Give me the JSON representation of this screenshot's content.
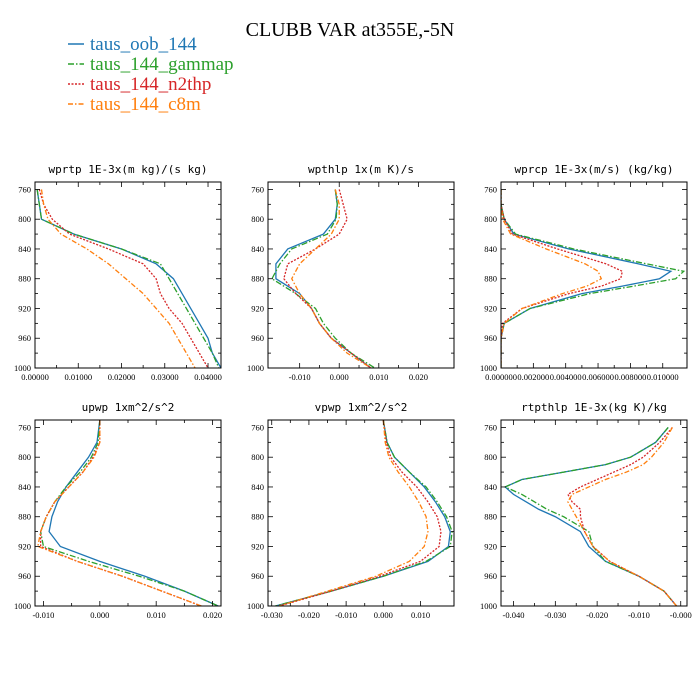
{
  "figure": {
    "title": "CLUBB VAR at355E,-5N"
  },
  "legend": [
    {
      "name": "taus_oob_144",
      "color": "#1f77b4",
      "dash": ""
    },
    {
      "name": "taus_144_gammap",
      "color": "#2ca02c",
      "dash": "6,2,1.5,2"
    },
    {
      "name": "taus_144_n2thp",
      "color": "#d62728",
      "dash": "2,1.5"
    },
    {
      "name": "taus_144_c8m",
      "color": "#ff7f0e",
      "dash": "5,2,1.5,2"
    }
  ],
  "chart_data": [
    {
      "type": "line",
      "title": "wprtp  1E-3x(m kg)/(s kg)",
      "xlim": [
        0.0,
        0.043
      ],
      "ylim": [
        1000,
        750
      ],
      "xticks": [
        0.0,
        0.01,
        0.02,
        0.03,
        0.04
      ],
      "xtick_labels": [
        "0.00000",
        "0.01000",
        "0.02000",
        "0.03000",
        "0.04000"
      ],
      "yticks": [
        760,
        800,
        840,
        880,
        920,
        960,
        1000
      ],
      "ytick_labels": [
        "760",
        "800",
        "840",
        "880",
        "920",
        "960",
        "1000"
      ],
      "y": [
        760,
        780,
        800,
        820,
        840,
        860,
        880,
        900,
        920,
        940,
        960,
        980,
        1000
      ],
      "series": [
        {
          "name": "taus_oob_144",
          "values": [
            0.0005,
            0.001,
            0.0015,
            0.009,
            0.02,
            0.028,
            0.032,
            0.034,
            0.036,
            0.038,
            0.04,
            0.041,
            0.043
          ]
        },
        {
          "name": "taus_144_gammap",
          "values": [
            0.0005,
            0.001,
            0.0015,
            0.009,
            0.02,
            0.029,
            0.031,
            0.033,
            0.035,
            0.037,
            0.039,
            0.041,
            0.0425
          ]
        },
        {
          "name": "taus_144_n2thp",
          "values": [
            0.001,
            0.002,
            0.004,
            0.008,
            0.017,
            0.025,
            0.028,
            0.029,
            0.031,
            0.034,
            0.036,
            0.038,
            0.04
          ]
        },
        {
          "name": "taus_144_c8m",
          "values": [
            0.0015,
            0.002,
            0.003,
            0.006,
            0.012,
            0.017,
            0.021,
            0.025,
            0.028,
            0.031,
            0.033,
            0.035,
            0.037
          ]
        }
      ]
    },
    {
      "type": "line",
      "title": "wpthlp  1x(m K)/s",
      "xlim": [
        -0.018,
        0.029
      ],
      "ylim": [
        1000,
        750
      ],
      "xticks": [
        -0.01,
        0.0,
        0.01,
        0.02
      ],
      "xtick_labels": [
        "-0.010",
        "0.000",
        "0.010",
        "0.020"
      ],
      "yticks": [
        760,
        800,
        840,
        880,
        920,
        960,
        1000
      ],
      "ytick_labels": [
        "760",
        "800",
        "840",
        "880",
        "920",
        "960",
        "1000"
      ],
      "y": [
        760,
        780,
        800,
        820,
        840,
        860,
        880,
        900,
        920,
        940,
        960,
        980,
        1000
      ],
      "series": [
        {
          "name": "taus_oob_144",
          "values": [
            -0.001,
            -0.0005,
            -0.001,
            -0.004,
            -0.013,
            -0.016,
            -0.016,
            -0.01,
            -0.007,
            -0.005,
            -0.002,
            0.003,
            0.008
          ]
        },
        {
          "name": "taus_144_gammap",
          "values": [
            -0.001,
            -0.0005,
            -0.0008,
            -0.003,
            -0.012,
            -0.015,
            -0.017,
            -0.011,
            -0.006,
            -0.004,
            -0.001,
            0.003,
            0.009
          ]
        },
        {
          "name": "taus_144_n2thp",
          "values": [
            0.0,
            0.001,
            0.002,
            0.0,
            -0.006,
            -0.013,
            -0.014,
            -0.011,
            -0.007,
            -0.005,
            -0.002,
            0.003,
            0.008
          ]
        },
        {
          "name": "taus_144_c8m",
          "values": [
            -0.001,
            0.0,
            0.0,
            -0.002,
            -0.006,
            -0.01,
            -0.012,
            -0.01,
            -0.007,
            -0.005,
            -0.002,
            0.002,
            0.008
          ]
        }
      ]
    },
    {
      "type": "line",
      "title": "wprcp  1E-3x(m/s) (kg/kg)",
      "xlim": [
        0.0,
        0.0115
      ],
      "ylim": [
        1000,
        750
      ],
      "xticks": [
        0.0,
        0.002,
        0.004,
        0.006,
        0.008,
        0.01
      ],
      "xtick_labels": [
        "0.000000",
        "0.002000",
        "0.004000",
        "0.006000",
        "0.008000",
        "0.010000"
      ],
      "yticks": [
        760,
        800,
        840,
        880,
        920,
        960,
        1000
      ],
      "ytick_labels": [
        "760",
        "800",
        "840",
        "880",
        "920",
        "960",
        "1000"
      ],
      "y": [
        760,
        780,
        800,
        820,
        840,
        860,
        870,
        880,
        890,
        900,
        920,
        940,
        960,
        980,
        1000
      ],
      "series": [
        {
          "name": "taus_oob_144",
          "values": [
            0.0,
            0.0,
            0.0002,
            0.0008,
            0.0042,
            0.0085,
            0.0105,
            0.0098,
            0.0075,
            0.005,
            0.0018,
            0.0002,
            0.0,
            0.0,
            0.0
          ]
        },
        {
          "name": "taus_144_gammap",
          "values": [
            0.0,
            0.0,
            0.0002,
            0.0009,
            0.0045,
            0.009,
            0.0113,
            0.0108,
            0.0082,
            0.0055,
            0.0018,
            0.0002,
            0.0,
            0.0,
            0.0
          ]
        },
        {
          "name": "taus_144_n2thp",
          "values": [
            0.0,
            0.0,
            0.0002,
            0.0007,
            0.0035,
            0.0065,
            0.0075,
            0.0074,
            0.0062,
            0.0042,
            0.0013,
            0.0001,
            0.0,
            0.0,
            0.0
          ]
        },
        {
          "name": "taus_144_c8m",
          "values": [
            0.0,
            0.0,
            0.0001,
            0.0006,
            0.0028,
            0.0052,
            0.006,
            0.0062,
            0.0053,
            0.0038,
            0.0013,
            0.0002,
            0.0,
            0.0,
            0.0
          ]
        }
      ]
    },
    {
      "type": "line",
      "title": "upwp  1xm^2/s^2",
      "xlim": [
        -0.0115,
        0.0215
      ],
      "ylim": [
        1000,
        750
      ],
      "xticks": [
        -0.01,
        0.0,
        0.01,
        0.02
      ],
      "xtick_labels": [
        "-0.010",
        "0.000",
        "0.010",
        "0.020"
      ],
      "yticks": [
        760,
        800,
        840,
        880,
        920,
        960,
        1000
      ],
      "ytick_labels": [
        "760",
        "800",
        "840",
        "880",
        "920",
        "960",
        "1000"
      ],
      "y": [
        750,
        780,
        800,
        820,
        840,
        860,
        880,
        900,
        920,
        940,
        960,
        980,
        1000
      ],
      "series": [
        {
          "name": "taus_oob_144",
          "values": [
            0.0,
            -0.0005,
            -0.002,
            -0.004,
            -0.006,
            -0.0075,
            -0.0085,
            -0.009,
            -0.007,
            0.0,
            0.008,
            0.015,
            0.021
          ]
        },
        {
          "name": "taus_144_gammap",
          "values": [
            0.0,
            -0.0003,
            -0.0015,
            -0.0035,
            -0.006,
            -0.008,
            -0.0095,
            -0.0105,
            -0.01,
            -0.002,
            0.007,
            0.015,
            0.021
          ]
        },
        {
          "name": "taus_144_n2thp",
          "values": [
            0.0,
            0.0,
            -0.0012,
            -0.003,
            -0.0055,
            -0.008,
            -0.0095,
            -0.0105,
            -0.0105,
            -0.004,
            0.004,
            0.011,
            0.018
          ]
        },
        {
          "name": "taus_144_c8m",
          "values": [
            0.0,
            0.0,
            -0.001,
            -0.003,
            -0.0055,
            -0.008,
            -0.0095,
            -0.0105,
            -0.011,
            -0.004,
            0.004,
            0.011,
            0.018
          ]
        }
      ]
    },
    {
      "type": "line",
      "title": "vpwp  1xm^2/s^2",
      "xlim": [
        -0.031,
        0.019
      ],
      "ylim": [
        1000,
        750
      ],
      "xticks": [
        -0.03,
        -0.02,
        -0.01,
        0.0,
        0.01
      ],
      "xtick_labels": [
        "-0.030",
        "-0.020",
        "-0.010",
        "0.000",
        "0.010"
      ],
      "yticks": [
        760,
        800,
        840,
        880,
        920,
        960,
        1000
      ],
      "ytick_labels": [
        "760",
        "800",
        "840",
        "880",
        "920",
        "960",
        "1000"
      ],
      "y": [
        750,
        780,
        800,
        820,
        840,
        860,
        880,
        900,
        920,
        940,
        960,
        980,
        1000
      ],
      "series": [
        {
          "name": "taus_oob_144",
          "values": [
            0.0,
            0.001,
            0.003,
            0.007,
            0.011,
            0.014,
            0.0165,
            0.018,
            0.0175,
            0.012,
            0.0,
            -0.014,
            -0.029
          ]
        },
        {
          "name": "taus_144_gammap",
          "values": [
            0.0,
            0.001,
            0.003,
            0.007,
            0.0115,
            0.0145,
            0.017,
            0.0185,
            0.018,
            0.0115,
            0.0,
            -0.014,
            -0.029
          ]
        },
        {
          "name": "taus_144_n2thp",
          "values": [
            0.0,
            0.0008,
            0.002,
            0.005,
            0.009,
            0.012,
            0.0145,
            0.0155,
            0.015,
            0.01,
            -0.001,
            -0.014,
            -0.028
          ]
        },
        {
          "name": "taus_144_c8m",
          "values": [
            0.0,
            0.0005,
            0.0015,
            0.004,
            0.007,
            0.0095,
            0.0115,
            0.012,
            0.011,
            0.007,
            -0.002,
            -0.015,
            -0.028
          ]
        }
      ]
    },
    {
      "type": "line",
      "title": "rtpthlp  1E-3x(kg K)/kg",
      "xlim": [
        -0.043,
        0.0015
      ],
      "ylim": [
        1000,
        750
      ],
      "xticks": [
        -0.04,
        -0.03,
        -0.02,
        -0.01,
        0.0
      ],
      "xtick_labels": [
        "-0.040",
        "-0.030",
        "-0.020",
        "-0.010",
        "-0.000"
      ],
      "yticks": [
        760,
        800,
        840,
        880,
        920,
        960,
        1000
      ],
      "ytick_labels": [
        "760",
        "800",
        "840",
        "880",
        "920",
        "960",
        "1000"
      ],
      "y": [
        760,
        780,
        800,
        810,
        820,
        830,
        840,
        850,
        860,
        870,
        880,
        900,
        920,
        940,
        960,
        980,
        1000
      ],
      "series": [
        {
          "name": "taus_oob_144",
          "values": [
            -0.003,
            -0.006,
            -0.012,
            -0.018,
            -0.028,
            -0.038,
            -0.042,
            -0.04,
            -0.037,
            -0.034,
            -0.03,
            -0.024,
            -0.022,
            -0.018,
            -0.01,
            -0.004,
            -0.001
          ]
        },
        {
          "name": "taus_144_gammap",
          "values": [
            -0.003,
            -0.006,
            -0.012,
            -0.018,
            -0.028,
            -0.038,
            -0.042,
            -0.038,
            -0.035,
            -0.032,
            -0.028,
            -0.022,
            -0.021,
            -0.018,
            -0.01,
            -0.004,
            -0.001
          ]
        },
        {
          "name": "taus_144_n2thp",
          "values": [
            -0.002,
            -0.005,
            -0.009,
            -0.012,
            -0.016,
            -0.02,
            -0.024,
            -0.027,
            -0.026,
            -0.024,
            -0.024,
            -0.023,
            -0.021,
            -0.017,
            -0.01,
            -0.004,
            -0.001
          ]
        },
        {
          "name": "taus_144_c8m",
          "values": [
            -0.002,
            -0.004,
            -0.007,
            -0.009,
            -0.013,
            -0.018,
            -0.022,
            -0.026,
            -0.027,
            -0.026,
            -0.025,
            -0.023,
            -0.021,
            -0.017,
            -0.01,
            -0.004,
            -0.001
          ]
        }
      ]
    }
  ]
}
